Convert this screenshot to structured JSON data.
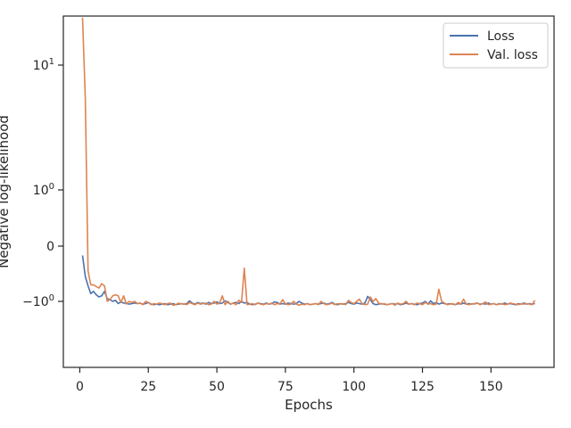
{
  "chart_data": {
    "type": "line",
    "title": "",
    "xlabel": "Epochs",
    "ylabel": "Negative log-likelihood",
    "xlim": [
      -6,
      173
    ],
    "x_ticks": [
      0,
      25,
      50,
      75,
      100,
      125,
      150
    ],
    "y_scale": "symlog",
    "y_ticks": [
      {
        "value": -1,
        "label": "−10",
        "sup": "0"
      },
      {
        "value": 0,
        "label": "0",
        "sup": ""
      },
      {
        "value": 1,
        "label": "10",
        "sup": "0"
      },
      {
        "value": 10,
        "label": "10",
        "sup": "1"
      }
    ],
    "grid": false,
    "legend_position": "top-right",
    "series": [
      {
        "name": "Loss",
        "color": "#4c72b0",
        "x": [
          1,
          2,
          3,
          4,
          5,
          6,
          7,
          8,
          9,
          10,
          11,
          12,
          13,
          14,
          15,
          16,
          17,
          18,
          19,
          20,
          21,
          22,
          23,
          24,
          25,
          26,
          27,
          28,
          29,
          30,
          31,
          32,
          33,
          34,
          35,
          36,
          37,
          38,
          39,
          40,
          41,
          42,
          43,
          44,
          45,
          46,
          47,
          48,
          49,
          50,
          51,
          52,
          53,
          54,
          55,
          56,
          57,
          58,
          59,
          60,
          61,
          62,
          63,
          64,
          65,
          66,
          67,
          68,
          69,
          70,
          71,
          72,
          73,
          74,
          75,
          76,
          77,
          78,
          79,
          80,
          81,
          82,
          83,
          84,
          85,
          86,
          87,
          88,
          89,
          90,
          91,
          92,
          93,
          94,
          95,
          96,
          97,
          98,
          99,
          100,
          101,
          102,
          103,
          104,
          105,
          106,
          107,
          108,
          109,
          110,
          111,
          112,
          113,
          114,
          115,
          116,
          117,
          118,
          119,
          120,
          121,
          122,
          123,
          124,
          125,
          126,
          127,
          128,
          129,
          130,
          131,
          132,
          133,
          134,
          135,
          136,
          137,
          138,
          139,
          140,
          141,
          142,
          143,
          144,
          145,
          146,
          147,
          148,
          149,
          150,
          151,
          152,
          153,
          154,
          155,
          156,
          157,
          158,
          159,
          160,
          161,
          162,
          163,
          164,
          165,
          166
        ],
        "y": [
          -0.17,
          -0.55,
          -0.72,
          -0.86,
          -0.82,
          -0.88,
          -0.92,
          -0.9,
          -0.82,
          -0.95,
          -0.97,
          -1.0,
          -0.98,
          -1.04,
          -1.01,
          -1.03,
          -1.03,
          -1.05,
          -1.04,
          -1.03,
          -1.04,
          -1.03,
          -1.05,
          -1.04,
          -1.02,
          -1.05,
          -1.06,
          -1.05,
          -1.06,
          -1.05,
          -1.04,
          -1.06,
          -1.05,
          -1.04,
          -1.06,
          -1.05,
          -1.04,
          -1.05,
          -1.04,
          -0.99,
          -1.03,
          -1.05,
          -1.02,
          -1.04,
          -1.03,
          -1.05,
          -1.02,
          -1.04,
          -1.03,
          -1.01,
          -1.04,
          -1.03,
          -0.99,
          -1.02,
          -1.05,
          -1.03,
          -1.02,
          -1.04,
          -1.0,
          -1.03,
          -1.02,
          -1.05,
          -1.06,
          -1.05,
          -1.03,
          -1.04,
          -1.05,
          -1.03,
          -1.05,
          -1.04,
          -1.01,
          -1.02,
          -1.05,
          -1.04,
          -1.05,
          -1.03,
          -1.04,
          -1.05,
          -1.04,
          -1.0,
          -1.03,
          -1.05,
          -1.04,
          -1.06,
          -1.05,
          -1.04,
          -1.05,
          -1.04,
          -1.03,
          -1.05,
          -1.04,
          -1.02,
          -1.05,
          -1.06,
          -1.04,
          -1.05,
          -1.04,
          -1.02,
          -1.04,
          -1.05,
          -1.03,
          -1.04,
          -1.05,
          -1.03,
          -0.91,
          -0.97,
          -1.04,
          -1.06,
          -1.05,
          -1.04,
          -1.05,
          -1.06,
          -1.05,
          -1.04,
          -1.05,
          -1.04,
          -1.06,
          -1.05,
          -1.03,
          -1.05,
          -1.04,
          -1.05,
          -1.06,
          -1.04,
          -1.03,
          -1.0,
          -1.05,
          -0.99,
          -1.04,
          -1.02,
          -1.05,
          -1.03,
          -1.04,
          -1.05,
          -1.04,
          -1.05,
          -1.06,
          -1.04,
          -1.05,
          -1.03,
          -1.05,
          -1.04,
          -1.05,
          -1.04,
          -1.03,
          -1.05,
          -1.04,
          -1.05,
          -1.03,
          -1.05,
          -1.04,
          -1.06,
          -1.04,
          -1.05,
          -1.03,
          -1.05,
          -1.04,
          -1.05,
          -1.06,
          -1.04,
          -1.05,
          -1.03,
          -1.05,
          -1.04,
          -1.05,
          -1.04
        ]
      },
      {
        "name": "Val. loss",
        "color": "#dd8452",
        "x": [
          1,
          2,
          3,
          4,
          5,
          6,
          7,
          8,
          9,
          10,
          11,
          12,
          13,
          14,
          15,
          16,
          17,
          18,
          19,
          20,
          21,
          22,
          23,
          24,
          25,
          26,
          27,
          28,
          29,
          30,
          31,
          32,
          33,
          34,
          35,
          36,
          37,
          38,
          39,
          40,
          41,
          42,
          43,
          44,
          45,
          46,
          47,
          48,
          49,
          50,
          51,
          52,
          53,
          54,
          55,
          56,
          57,
          58,
          59,
          60,
          61,
          62,
          63,
          64,
          65,
          66,
          67,
          68,
          69,
          70,
          71,
          72,
          73,
          74,
          75,
          76,
          77,
          78,
          79,
          80,
          81,
          82,
          83,
          84,
          85,
          86,
          87,
          88,
          89,
          90,
          91,
          92,
          93,
          94,
          95,
          96,
          97,
          98,
          99,
          100,
          101,
          102,
          103,
          104,
          105,
          106,
          107,
          108,
          109,
          110,
          111,
          112,
          113,
          114,
          115,
          116,
          117,
          118,
          119,
          120,
          121,
          122,
          123,
          124,
          125,
          126,
          127,
          128,
          129,
          130,
          131,
          132,
          133,
          134,
          135,
          136,
          137,
          138,
          139,
          140,
          141,
          142,
          143,
          144,
          145,
          146,
          147,
          148,
          149,
          150,
          151,
          152,
          153,
          154,
          155,
          156,
          157,
          158,
          159,
          160,
          161,
          162,
          163,
          164,
          165,
          166
        ],
        "y": [
          24.0,
          5.5,
          -0.45,
          -0.7,
          -0.7,
          -0.73,
          -0.76,
          -0.68,
          -0.72,
          -1.0,
          -0.97,
          -0.9,
          -0.88,
          -0.9,
          -1.02,
          -0.9,
          -1.05,
          -1.0,
          -1.02,
          -1.0,
          -1.04,
          -1.03,
          -1.06,
          -1.0,
          -1.02,
          -1.06,
          -1.04,
          -1.05,
          -1.03,
          -1.04,
          -1.06,
          -1.04,
          -1.03,
          -1.07,
          -1.06,
          -1.03,
          -1.05,
          -1.04,
          -1.06,
          -1.02,
          -1.04,
          -1.06,
          -1.03,
          -1.05,
          -1.04,
          -1.03,
          -1.06,
          -1.05,
          -1.0,
          -1.05,
          -1.03,
          -0.9,
          -1.06,
          -1.0,
          -1.05,
          -1.03,
          -1.06,
          -0.98,
          -1.02,
          -0.4,
          -1.06,
          -1.05,
          -1.04,
          -1.06,
          -1.03,
          -1.05,
          -1.06,
          -1.04,
          -1.05,
          -1.03,
          -1.06,
          -1.04,
          -1.05,
          -0.97,
          -1.04,
          -1.06,
          -1.05,
          -1.0,
          -1.05,
          -1.07,
          -1.05,
          -1.06,
          -1.04,
          -1.06,
          -1.05,
          -1.04,
          -1.06,
          -1.0,
          -1.04,
          -1.06,
          -1.05,
          -1.03,
          -1.06,
          -1.04,
          -1.05,
          -1.04,
          -1.06,
          -0.98,
          -1.02,
          -1.04,
          -1.0,
          -0.96,
          -1.04,
          -1.06,
          -1.05,
          -0.92,
          -1.0,
          -0.95,
          -1.03,
          -1.05,
          -1.04,
          -1.06,
          -1.05,
          -1.04,
          -1.07,
          -1.03,
          -1.05,
          -1.04,
          -1.0,
          -1.05,
          -1.04,
          -1.06,
          -1.03,
          -1.04,
          -1.06,
          -1.02,
          -1.05,
          -1.04,
          -1.06,
          -1.05,
          -0.78,
          -1.0,
          -1.03,
          -1.06,
          -1.05,
          -1.04,
          -1.06,
          -1.02,
          -1.05,
          -0.96,
          -1.05,
          -1.06,
          -1.04,
          -1.05,
          -1.03,
          -1.06,
          -1.04,
          -1.01,
          -1.06,
          -1.05,
          -1.04,
          -1.06,
          -1.05,
          -1.04,
          -1.06,
          -1.05,
          -1.03,
          -1.04,
          -1.05,
          -1.06,
          -1.04,
          -1.05,
          -1.04,
          -1.05,
          -1.06,
          -0.98
        ]
      }
    ]
  }
}
